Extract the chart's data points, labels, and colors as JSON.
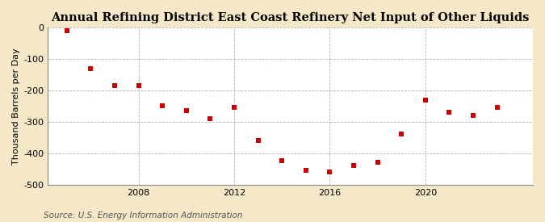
{
  "title": "Annual Refining District East Coast Refinery Net Input of Other Liquids",
  "ylabel": "Thousand Barrels per Day",
  "source": "Source: U.S. Energy Information Administration",
  "figure_bg": "#f5e8c8",
  "plot_bg": "#ffffff",
  "years": [
    2005,
    2006,
    2007,
    2008,
    2009,
    2010,
    2011,
    2012,
    2013,
    2014,
    2015,
    2016,
    2017,
    2018,
    2019,
    2020,
    2021,
    2022,
    2023
  ],
  "values": [
    -10,
    -130,
    -185,
    -185,
    -250,
    -265,
    -290,
    -255,
    -360,
    -425,
    -455,
    -460,
    -440,
    -430,
    -340,
    -230,
    -270,
    -280,
    -255
  ],
  "marker_color": "#cc0000",
  "ylim": [
    -500,
    0
  ],
  "yticks": [
    0,
    -100,
    -200,
    -300,
    -400,
    -500
  ],
  "xticks": [
    2008,
    2012,
    2016,
    2020
  ],
  "xlim": [
    2004.2,
    2024.5
  ],
  "grid_color": "#aaaaaa",
  "spine_color": "#888888",
  "title_fontsize": 10.5,
  "tick_fontsize": 8,
  "ylabel_fontsize": 8,
  "source_fontsize": 7.5,
  "marker_size": 18
}
